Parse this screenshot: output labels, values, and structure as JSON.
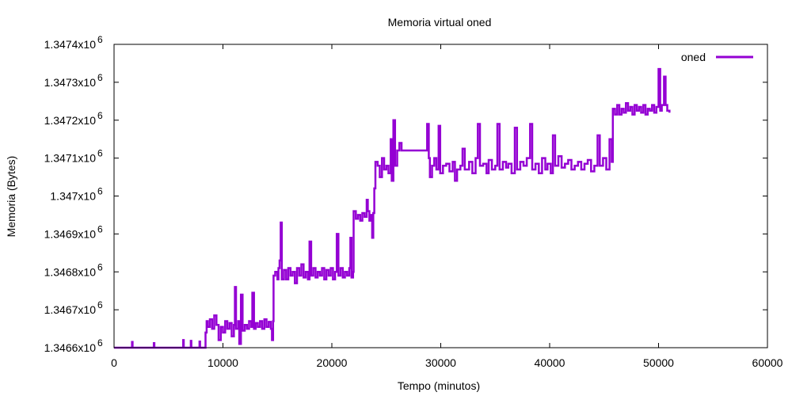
{
  "chart_data": {
    "type": "line",
    "title": "Memoria virtual oned",
    "xlabel": "Tempo (minutos)",
    "ylabel": "Memoria (Bytes)",
    "xlim": [
      0,
      60000
    ],
    "ylim": [
      1346600,
      1347400
    ],
    "x_ticks": [
      0,
      10000,
      20000,
      30000,
      40000,
      50000,
      60000
    ],
    "x_tick_labels": [
      "0",
      "10000",
      "20000",
      "30000",
      "40000",
      "50000",
      "60000"
    ],
    "y_ticks": [
      1346600,
      1346700,
      1346800,
      1346900,
      1347000,
      1347100,
      1347200,
      1347300,
      1347400
    ],
    "y_tick_labels": [
      "1.3466x10",
      "1.3467x10",
      "1.3468x10",
      "1.3469x10",
      "1.347x10",
      "1.3471x10",
      "1.3472x10",
      "1.3473x10",
      "1.3474x10"
    ],
    "y_tick_exponent": "6",
    "grid": false,
    "legend_position": "top-right",
    "series": [
      {
        "name": "oned",
        "color": "#9400d3",
        "points": [
          [
            0,
            1346600
          ],
          [
            1600,
            1346600
          ],
          [
            1650,
            1346615
          ],
          [
            1700,
            1346600
          ],
          [
            3600,
            1346600
          ],
          [
            3650,
            1346612
          ],
          [
            3700,
            1346600
          ],
          [
            6300,
            1346600
          ],
          [
            6350,
            1346620
          ],
          [
            6400,
            1346600
          ],
          [
            7000,
            1346600
          ],
          [
            7050,
            1346618
          ],
          [
            7100,
            1346600
          ],
          [
            7800,
            1346600
          ],
          [
            7850,
            1346616
          ],
          [
            7900,
            1346600
          ],
          [
            8350,
            1346600
          ],
          [
            8400,
            1346640
          ],
          [
            8500,
            1346670
          ],
          [
            8600,
            1346655
          ],
          [
            8800,
            1346675
          ],
          [
            9000,
            1346650
          ],
          [
            9200,
            1346685
          ],
          [
            9400,
            1346660
          ],
          [
            9600,
            1346620
          ],
          [
            9800,
            1346655
          ],
          [
            10000,
            1346640
          ],
          [
            10200,
            1346670
          ],
          [
            10400,
            1346650
          ],
          [
            10600,
            1346665
          ],
          [
            10800,
            1346630
          ],
          [
            11000,
            1346660
          ],
          [
            11100,
            1346760
          ],
          [
            11200,
            1346650
          ],
          [
            11400,
            1346670
          ],
          [
            11500,
            1346610
          ],
          [
            11650,
            1346740
          ],
          [
            11800,
            1346645
          ],
          [
            12000,
            1346660
          ],
          [
            12200,
            1346650
          ],
          [
            12400,
            1346670
          ],
          [
            12600,
            1346655
          ],
          [
            12700,
            1346745
          ],
          [
            12850,
            1346650
          ],
          [
            13000,
            1346665
          ],
          [
            13200,
            1346655
          ],
          [
            13400,
            1346670
          ],
          [
            13600,
            1346650
          ],
          [
            13800,
            1346675
          ],
          [
            14000,
            1346655
          ],
          [
            14200,
            1346668
          ],
          [
            14400,
            1346650
          ],
          [
            14500,
            1346620
          ],
          [
            14600,
            1346670
          ],
          [
            14650,
            1346790
          ],
          [
            14800,
            1346800
          ],
          [
            15000,
            1346780
          ],
          [
            15100,
            1346810
          ],
          [
            15200,
            1346830
          ],
          [
            15300,
            1346930
          ],
          [
            15400,
            1346780
          ],
          [
            15600,
            1346805
          ],
          [
            15800,
            1346780
          ],
          [
            16000,
            1346810
          ],
          [
            16200,
            1346790
          ],
          [
            16400,
            1346800
          ],
          [
            16600,
            1346770
          ],
          [
            16800,
            1346810
          ],
          [
            17000,
            1346790
          ],
          [
            17200,
            1346820
          ],
          [
            17400,
            1346785
          ],
          [
            17600,
            1346800
          ],
          [
            17800,
            1346780
          ],
          [
            17950,
            1346880
          ],
          [
            18100,
            1346790
          ],
          [
            18300,
            1346810
          ],
          [
            18500,
            1346785
          ],
          [
            18700,
            1346800
          ],
          [
            18900,
            1346790
          ],
          [
            19100,
            1346810
          ],
          [
            19300,
            1346780
          ],
          [
            19500,
            1346805
          ],
          [
            19700,
            1346790
          ],
          [
            19900,
            1346810
          ],
          [
            20100,
            1346780
          ],
          [
            20300,
            1346800
          ],
          [
            20450,
            1346900
          ],
          [
            20600,
            1346790
          ],
          [
            20800,
            1346810
          ],
          [
            21000,
            1346785
          ],
          [
            21200,
            1346800
          ],
          [
            21400,
            1346790
          ],
          [
            21600,
            1346810
          ],
          [
            21700,
            1346890
          ],
          [
            21800,
            1346785
          ],
          [
            21950,
            1346800
          ],
          [
            22000,
            1346960
          ],
          [
            22200,
            1346940
          ],
          [
            22400,
            1346950
          ],
          [
            22600,
            1346935
          ],
          [
            22800,
            1346955
          ],
          [
            23000,
            1346945
          ],
          [
            23200,
            1346990
          ],
          [
            23300,
            1346960
          ],
          [
            23450,
            1346935
          ],
          [
            23600,
            1346950
          ],
          [
            23700,
            1346890
          ],
          [
            23800,
            1346955
          ],
          [
            23900,
            1347020
          ],
          [
            24000,
            1347090
          ],
          [
            24200,
            1347080
          ],
          [
            24400,
            1347050
          ],
          [
            24600,
            1347100
          ],
          [
            24800,
            1347070
          ],
          [
            25000,
            1347080
          ],
          [
            25200,
            1347060
          ],
          [
            25400,
            1347150
          ],
          [
            25500,
            1347040
          ],
          [
            25650,
            1347200
          ],
          [
            25800,
            1347080
          ],
          [
            26000,
            1347120
          ],
          [
            26200,
            1347140
          ],
          [
            26400,
            1347120
          ],
          [
            28600,
            1347120
          ],
          [
            28750,
            1347190
          ],
          [
            28900,
            1347100
          ],
          [
            29000,
            1347050
          ],
          [
            29200,
            1347080
          ],
          [
            29400,
            1347100
          ],
          [
            29600,
            1347070
          ],
          [
            29800,
            1347185
          ],
          [
            29950,
            1347060
          ],
          [
            30200,
            1347080
          ],
          [
            30500,
            1347085
          ],
          [
            30800,
            1347065
          ],
          [
            31100,
            1347090
          ],
          [
            31300,
            1347040
          ],
          [
            31500,
            1347070
          ],
          [
            31800,
            1347080
          ],
          [
            32000,
            1347125
          ],
          [
            32200,
            1347070
          ],
          [
            32600,
            1347090
          ],
          [
            32900,
            1347060
          ],
          [
            33200,
            1347100
          ],
          [
            33400,
            1347190
          ],
          [
            33600,
            1347080
          ],
          [
            33900,
            1347085
          ],
          [
            34200,
            1347060
          ],
          [
            34400,
            1347095
          ],
          [
            34700,
            1347070
          ],
          [
            35000,
            1347080
          ],
          [
            35200,
            1347190
          ],
          [
            35400,
            1347070
          ],
          [
            35700,
            1347090
          ],
          [
            36000,
            1347075
          ],
          [
            36200,
            1347085
          ],
          [
            36500,
            1347060
          ],
          [
            36800,
            1347180
          ],
          [
            37000,
            1347070
          ],
          [
            37300,
            1347090
          ],
          [
            37600,
            1347080
          ],
          [
            37900,
            1347100
          ],
          [
            38200,
            1347190
          ],
          [
            38400,
            1347070
          ],
          [
            38700,
            1347085
          ],
          [
            39000,
            1347060
          ],
          [
            39300,
            1347100
          ],
          [
            39600,
            1347070
          ],
          [
            39800,
            1347085
          ],
          [
            40100,
            1347060
          ],
          [
            40300,
            1347160
          ],
          [
            40500,
            1347080
          ],
          [
            40800,
            1347105
          ],
          [
            41100,
            1347075
          ],
          [
            41400,
            1347085
          ],
          [
            41700,
            1347095
          ],
          [
            42000,
            1347070
          ],
          [
            42300,
            1347080
          ],
          [
            42600,
            1347090
          ],
          [
            42900,
            1347070
          ],
          [
            43200,
            1347085
          ],
          [
            43500,
            1347095
          ],
          [
            43800,
            1347065
          ],
          [
            44100,
            1347080
          ],
          [
            44400,
            1347160
          ],
          [
            44600,
            1347080
          ],
          [
            44900,
            1347100
          ],
          [
            45200,
            1347070
          ],
          [
            45500,
            1347150
          ],
          [
            45700,
            1347090
          ],
          [
            45800,
            1347230
          ],
          [
            46000,
            1347215
          ],
          [
            46200,
            1347240
          ],
          [
            46400,
            1347215
          ],
          [
            46600,
            1347230
          ],
          [
            46800,
            1347220
          ],
          [
            47000,
            1347245
          ],
          [
            47200,
            1347225
          ],
          [
            47400,
            1347235
          ],
          [
            47600,
            1347215
          ],
          [
            47800,
            1347240
          ],
          [
            48000,
            1347225
          ],
          [
            48200,
            1347235
          ],
          [
            48400,
            1347220
          ],
          [
            48600,
            1347240
          ],
          [
            48800,
            1347215
          ],
          [
            49000,
            1347230
          ],
          [
            49200,
            1347225
          ],
          [
            49400,
            1347240
          ],
          [
            49600,
            1347220
          ],
          [
            49800,
            1347235
          ],
          [
            50000,
            1347335
          ],
          [
            50150,
            1347225
          ],
          [
            50300,
            1347240
          ],
          [
            50500,
            1347315
          ],
          [
            50650,
            1347240
          ],
          [
            50800,
            1347225
          ],
          [
            51000,
            1347220
          ]
        ]
      }
    ]
  }
}
